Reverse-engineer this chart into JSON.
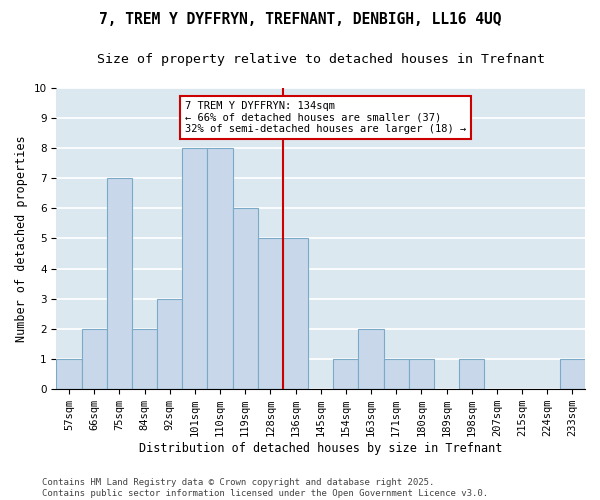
{
  "title": "7, TREM Y DYFFRYN, TREFNANT, DENBIGH, LL16 4UQ",
  "subtitle": "Size of property relative to detached houses in Trefnant",
  "xlabel": "Distribution of detached houses by size in Trefnant",
  "ylabel": "Number of detached properties",
  "categories": [
    "57sqm",
    "66sqm",
    "75sqm",
    "84sqm",
    "92sqm",
    "101sqm",
    "110sqm",
    "119sqm",
    "128sqm",
    "136sqm",
    "145sqm",
    "154sqm",
    "163sqm",
    "171sqm",
    "180sqm",
    "189sqm",
    "198sqm",
    "207sqm",
    "215sqm",
    "224sqm",
    "233sqm"
  ],
  "values": [
    1,
    2,
    7,
    2,
    3,
    8,
    8,
    6,
    5,
    5,
    0,
    1,
    2,
    1,
    1,
    0,
    1,
    0,
    0,
    0,
    1
  ],
  "bar_color": "#c8d8ea",
  "bar_edge_color": "#7aaac8",
  "vline_x_index": 8.5,
  "vline_color": "#cc0000",
  "annotation_text": "7 TREM Y DYFFRYN: 134sqm\n← 66% of detached houses are smaller (37)\n32% of semi-detached houses are larger (18) →",
  "annotation_box_color": "#ffffff",
  "annotation_box_edge_color": "#cc0000",
  "ylim": [
    0,
    10
  ],
  "yticks": [
    0,
    1,
    2,
    3,
    4,
    5,
    6,
    7,
    8,
    9,
    10
  ],
  "plot_bg_color": "#dce8f0",
  "fig_bg_color": "#ffffff",
  "grid_color": "#ffffff",
  "footer": "Contains HM Land Registry data © Crown copyright and database right 2025.\nContains public sector information licensed under the Open Government Licence v3.0.",
  "title_fontsize": 10.5,
  "subtitle_fontsize": 9.5,
  "xlabel_fontsize": 8.5,
  "ylabel_fontsize": 8.5,
  "annotation_fontsize": 7.5,
  "tick_fontsize": 7.5,
  "footer_fontsize": 6.5
}
